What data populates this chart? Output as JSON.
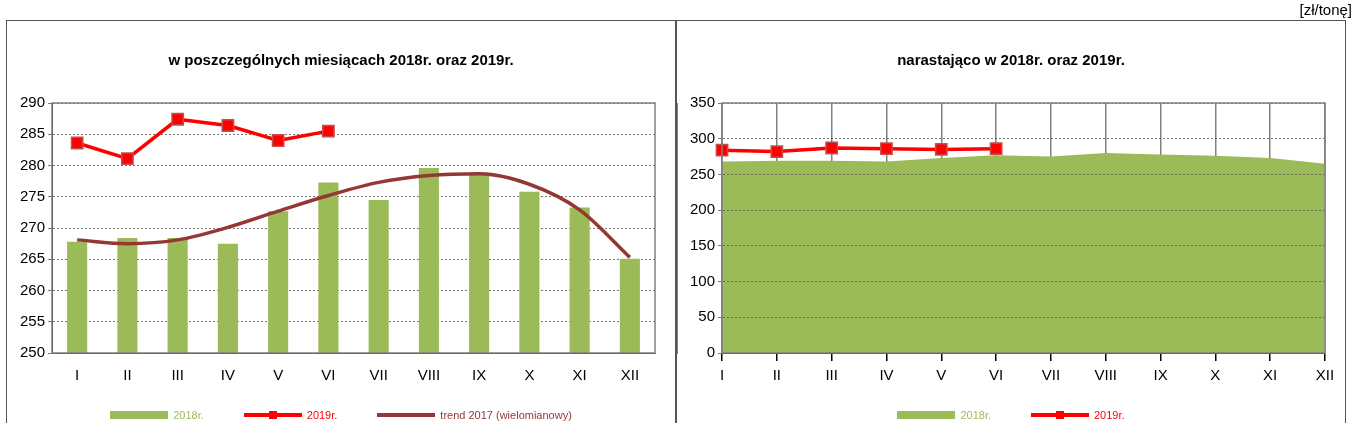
{
  "chart_data": [
    {
      "type": "bar",
      "title": "w poszczególnych miesiącach 2018r. oraz 2019r.",
      "categories": [
        "I",
        "II",
        "III",
        "IV",
        "V",
        "VI",
        "VII",
        "VIII",
        "IX",
        "X",
        "XI",
        "XII"
      ],
      "ylim": [
        250,
        290
      ],
      "yticks": [
        250,
        255,
        260,
        265,
        270,
        275,
        280,
        285,
        290
      ],
      "grid": "y",
      "legend": "bottom",
      "series": [
        {
          "name": "2018r.",
          "type": "bar",
          "color": "#9bbb59",
          "values": [
            267.8,
            268.4,
            268.4,
            267.5,
            272.7,
            277.3,
            274.5,
            279.6,
            278.7,
            275.8,
            273.3,
            265.1
          ]
        },
        {
          "name": "2019r.",
          "type": "line",
          "color": "#ff0000",
          "marker": "square",
          "values": [
            283.6,
            281.1,
            287.4,
            286.4,
            284.0,
            285.5,
            null,
            null,
            null,
            null,
            null,
            null
          ]
        },
        {
          "name": "trend 2017 (wielomianowy)",
          "type": "line",
          "color": "#953735",
          "marker": "none",
          "values": [
            268.1,
            267.5,
            268.1,
            270.1,
            272.7,
            275.2,
            277.3,
            278.4,
            278.7,
            277.0,
            272.9,
            265.3
          ]
        }
      ]
    },
    {
      "type": "area",
      "title": "narastająco w 2018r. oraz 2019r.",
      "categories": [
        "I",
        "II",
        "III",
        "IV",
        "V",
        "VI",
        "VII",
        "VIII",
        "IX",
        "X",
        "XI",
        "XII"
      ],
      "ylim": [
        0,
        350
      ],
      "yticks": [
        0,
        50,
        100,
        150,
        200,
        250,
        300,
        350
      ],
      "grid": true,
      "legend": "bottom",
      "annotations": [
        "[zł/tonę]"
      ],
      "series": [
        {
          "name": "2018r.",
          "type": "area",
          "color": "#9bbb59",
          "values": [
            268,
            269,
            269,
            268,
            273,
            277,
            275,
            280,
            278,
            276,
            273,
            265
          ]
        },
        {
          "name": "2019r.",
          "type": "line",
          "color": "#ff0000",
          "marker": "square",
          "values": [
            284,
            282,
            287,
            286,
            285,
            286,
            null,
            null,
            null,
            null,
            null,
            null
          ]
        }
      ]
    }
  ]
}
